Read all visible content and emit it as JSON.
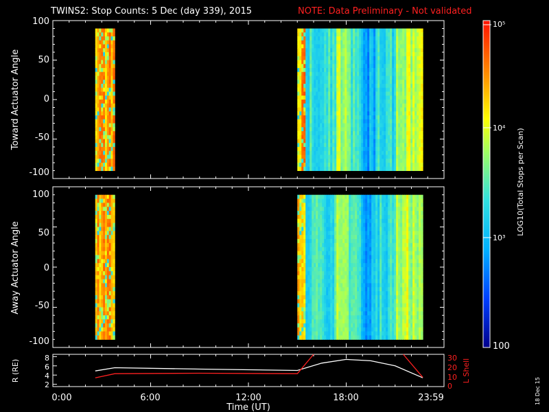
{
  "header": {
    "title": "TWINS2: Stop Counts:  5 Dec (day 339), 2015",
    "note": "NOTE: Data Preliminary - Not validated"
  },
  "colors": {
    "background": "#000000",
    "axis": "#ffffff",
    "red_trace": "#ff2020",
    "white_trace": "#ffffff"
  },
  "colorbar": {
    "label": "LOG10(Total Stops per Scan)",
    "tick_labels": [
      "100",
      "10³",
      "10⁴",
      "10⁵"
    ],
    "scale": "log",
    "range": [
      100,
      100000
    ]
  },
  "time_axis": {
    "label": "Time (UT)",
    "tick_labels": [
      "0:00",
      "6:00",
      "12:00",
      "18:00",
      "23:59"
    ]
  },
  "footer": {
    "date_stamp": "18 Dec 15"
  },
  "chart_data": [
    {
      "type": "heatmap",
      "ylabel": "Toward Actuator Angle",
      "y_tick_labels": [
        "100",
        "50",
        "0",
        "-50",
        "-100"
      ],
      "ylim": [
        -100,
        100
      ],
      "xlim_hours": [
        0,
        24
      ],
      "data_intervals_hours": [
        [
          2.6,
          3.8
        ],
        [
          15.0,
          22.7
        ]
      ],
      "angle_range": [
        -90,
        90
      ],
      "value_scale": "log10 total stops per scan"
    },
    {
      "type": "heatmap",
      "ylabel": "Away Actuator Angle",
      "y_tick_labels": [
        "100",
        "50",
        "0",
        "-50",
        "-100"
      ],
      "ylim": [
        -100,
        100
      ],
      "xlim_hours": [
        0,
        24
      ],
      "data_intervals_hours": [
        [
          2.6,
          3.8
        ],
        [
          15.0,
          22.7
        ]
      ],
      "angle_range": [
        -90,
        90
      ],
      "value_scale": "log10 total stops per scan"
    },
    {
      "type": "line",
      "ylabel_left": "R (RE)",
      "ylabel_right": "L Shell",
      "y_left_tick_labels": [
        "8",
        "6",
        "4",
        "2"
      ],
      "y_right_tick_labels": [
        "30",
        "20",
        "10",
        "0"
      ],
      "ylim_left": [
        1.5,
        8.5
      ],
      "ylim_right": [
        0,
        30
      ],
      "series": [
        {
          "color": "#ffffff",
          "axis": "left",
          "x": [
            2.6,
            3.8,
            9.0,
            15.0,
            16.5,
            18.0,
            19.5,
            21.0,
            22.7
          ],
          "y": [
            4.9,
            5.6,
            5.3,
            5.0,
            6.6,
            7.4,
            7.1,
            6.0,
            3.4
          ]
        },
        {
          "color": "#ff2020",
          "axis": "left",
          "x": [
            2.6,
            3.8,
            9.0,
            15.0,
            16.0
          ],
          "y": [
            3.4,
            4.3,
            4.4,
            4.3,
            8.5
          ]
        },
        {
          "color": "#ff2020",
          "axis": "left",
          "x": [
            21.5,
            22.7
          ],
          "y": [
            8.5,
            3.5
          ]
        }
      ]
    }
  ]
}
